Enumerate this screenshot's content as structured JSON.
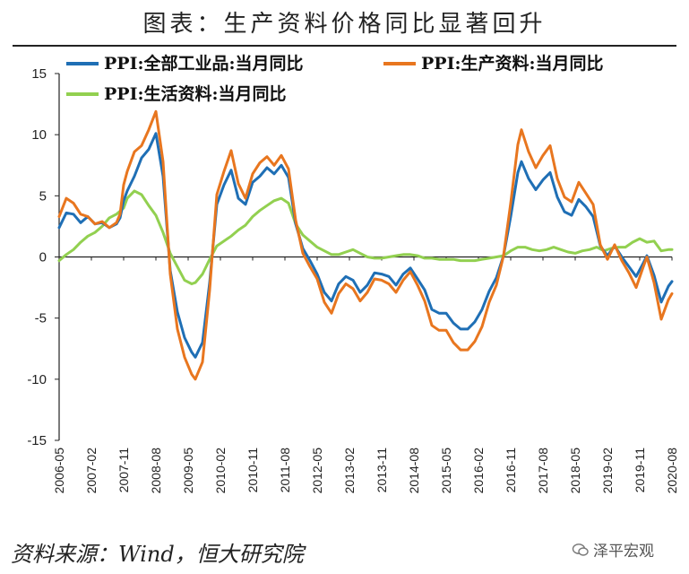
{
  "title": "图表：生产资料价格同比显著回升",
  "source": "资料来源：Wind，恒大研究院",
  "watermark": "泽平宏观",
  "chart_data": {
    "type": "line",
    "title": "图表：生产资料价格同比显著回升",
    "xlabel": "",
    "ylabel": "",
    "ylim": [
      -15,
      15
    ],
    "yticks": [
      15,
      10,
      5,
      0,
      -5,
      -10,
      -15
    ],
    "xlim": [
      "2006-05",
      "2020-08"
    ],
    "xticks": [
      "2006-05",
      "2007-02",
      "2007-11",
      "2008-08",
      "2009-05",
      "2010-02",
      "2010-11",
      "2011-08",
      "2012-05",
      "2013-02",
      "2013-11",
      "2014-08",
      "2015-05",
      "2016-02",
      "2016-11",
      "2017-08",
      "2018-05",
      "2019-02",
      "2019-11",
      "2020-08"
    ],
    "grid": false,
    "legend_position": "top-left",
    "series": [
      {
        "name": "PPI:全部工业品:当月同比",
        "color": "#1f6fb5",
        "points": [
          [
            "2006-05",
            2.4
          ],
          [
            "2006-07",
            3.6
          ],
          [
            "2006-09",
            3.5
          ],
          [
            "2006-11",
            2.8
          ],
          [
            "2007-01",
            3.3
          ],
          [
            "2007-03",
            2.7
          ],
          [
            "2007-05",
            2.8
          ],
          [
            "2007-07",
            2.4
          ],
          [
            "2007-09",
            2.7
          ],
          [
            "2007-10",
            3.2
          ],
          [
            "2007-11",
            4.6
          ],
          [
            "2007-12",
            5.4
          ],
          [
            "2008-02",
            6.6
          ],
          [
            "2008-04",
            8.1
          ],
          [
            "2008-06",
            8.8
          ],
          [
            "2008-08",
            10.1
          ],
          [
            "2008-10",
            6.6
          ],
          [
            "2008-12",
            -1.1
          ],
          [
            "2009-02",
            -4.5
          ],
          [
            "2009-04",
            -6.6
          ],
          [
            "2009-06",
            -7.8
          ],
          [
            "2009-07",
            -8.2
          ],
          [
            "2009-09",
            -7.0
          ],
          [
            "2009-11",
            -2.1
          ],
          [
            "2010-01",
            4.3
          ],
          [
            "2010-03",
            5.9
          ],
          [
            "2010-05",
            7.1
          ],
          [
            "2010-07",
            4.8
          ],
          [
            "2010-09",
            4.3
          ],
          [
            "2010-11",
            6.1
          ],
          [
            "2011-01",
            6.6
          ],
          [
            "2011-03",
            7.3
          ],
          [
            "2011-05",
            6.8
          ],
          [
            "2011-07",
            7.5
          ],
          [
            "2011-09",
            6.5
          ],
          [
            "2011-11",
            2.7
          ],
          [
            "2012-01",
            0.7
          ],
          [
            "2012-03",
            -0.3
          ],
          [
            "2012-05",
            -1.4
          ],
          [
            "2012-07",
            -2.9
          ],
          [
            "2012-09",
            -3.6
          ],
          [
            "2012-11",
            -2.2
          ],
          [
            "2013-01",
            -1.6
          ],
          [
            "2013-03",
            -1.9
          ],
          [
            "2013-05",
            -2.9
          ],
          [
            "2013-07",
            -2.3
          ],
          [
            "2013-09",
            -1.3
          ],
          [
            "2013-11",
            -1.4
          ],
          [
            "2014-01",
            -1.6
          ],
          [
            "2014-03",
            -2.3
          ],
          [
            "2014-05",
            -1.4
          ],
          [
            "2014-07",
            -0.9
          ],
          [
            "2014-09",
            -1.8
          ],
          [
            "2014-11",
            -2.7
          ],
          [
            "2015-01",
            -4.3
          ],
          [
            "2015-03",
            -4.6
          ],
          [
            "2015-05",
            -4.6
          ],
          [
            "2015-07",
            -5.4
          ],
          [
            "2015-09",
            -5.9
          ],
          [
            "2015-11",
            -5.9
          ],
          [
            "2016-01",
            -5.3
          ],
          [
            "2016-03",
            -4.3
          ],
          [
            "2016-05",
            -2.8
          ],
          [
            "2016-07",
            -1.7
          ],
          [
            "2016-09",
            0.1
          ],
          [
            "2016-11",
            3.3
          ],
          [
            "2017-01",
            6.9
          ],
          [
            "2017-02",
            7.8
          ],
          [
            "2017-04",
            6.4
          ],
          [
            "2017-06",
            5.5
          ],
          [
            "2017-08",
            6.3
          ],
          [
            "2017-10",
            6.9
          ],
          [
            "2017-12",
            4.9
          ],
          [
            "2018-02",
            3.7
          ],
          [
            "2018-04",
            3.4
          ],
          [
            "2018-06",
            4.7
          ],
          [
            "2018-08",
            4.1
          ],
          [
            "2018-10",
            3.3
          ],
          [
            "2018-12",
            0.9
          ],
          [
            "2019-02",
            0.1
          ],
          [
            "2019-04",
            0.9
          ],
          [
            "2019-06",
            0.0
          ],
          [
            "2019-08",
            -0.8
          ],
          [
            "2019-10",
            -1.6
          ],
          [
            "2019-12",
            -0.5
          ],
          [
            "2020-01",
            0.1
          ],
          [
            "2020-03",
            -1.5
          ],
          [
            "2020-05",
            -3.7
          ],
          [
            "2020-07",
            -2.4
          ],
          [
            "2020-08",
            -2.0
          ]
        ]
      },
      {
        "name": "PPI:生产资料:当月同比",
        "color": "#e8761f",
        "points": [
          [
            "2006-05",
            3.3
          ],
          [
            "2006-07",
            4.8
          ],
          [
            "2006-09",
            4.4
          ],
          [
            "2006-11",
            3.5
          ],
          [
            "2007-01",
            3.3
          ],
          [
            "2007-03",
            2.7
          ],
          [
            "2007-05",
            2.9
          ],
          [
            "2007-07",
            2.4
          ],
          [
            "2007-09",
            2.8
          ],
          [
            "2007-10",
            3.5
          ],
          [
            "2007-11",
            5.9
          ],
          [
            "2007-12",
            7.0
          ],
          [
            "2008-02",
            8.6
          ],
          [
            "2008-04",
            9.1
          ],
          [
            "2008-06",
            10.4
          ],
          [
            "2008-08",
            11.9
          ],
          [
            "2008-10",
            7.8
          ],
          [
            "2008-12",
            -1.4
          ],
          [
            "2009-02",
            -5.9
          ],
          [
            "2009-04",
            -8.2
          ],
          [
            "2009-06",
            -9.6
          ],
          [
            "2009-07",
            -10.0
          ],
          [
            "2009-09",
            -8.6
          ],
          [
            "2009-11",
            -2.7
          ],
          [
            "2010-01",
            5.1
          ],
          [
            "2010-03",
            7.0
          ],
          [
            "2010-05",
            8.7
          ],
          [
            "2010-07",
            6.0
          ],
          [
            "2010-09",
            4.8
          ],
          [
            "2010-11",
            6.8
          ],
          [
            "2011-01",
            7.7
          ],
          [
            "2011-03",
            8.2
          ],
          [
            "2011-05",
            7.5
          ],
          [
            "2011-07",
            8.3
          ],
          [
            "2011-09",
            7.2
          ],
          [
            "2011-11",
            3.0
          ],
          [
            "2012-01",
            0.3
          ],
          [
            "2012-03",
            -0.8
          ],
          [
            "2012-05",
            -1.8
          ],
          [
            "2012-07",
            -3.7
          ],
          [
            "2012-09",
            -4.6
          ],
          [
            "2012-11",
            -3.0
          ],
          [
            "2013-01",
            -2.2
          ],
          [
            "2013-03",
            -2.6
          ],
          [
            "2013-05",
            -3.6
          ],
          [
            "2013-07",
            -2.9
          ],
          [
            "2013-09",
            -1.8
          ],
          [
            "2013-11",
            -1.9
          ],
          [
            "2014-01",
            -2.2
          ],
          [
            "2014-03",
            -2.9
          ],
          [
            "2014-05",
            -1.9
          ],
          [
            "2014-07",
            -1.2
          ],
          [
            "2014-09",
            -2.3
          ],
          [
            "2014-11",
            -3.6
          ],
          [
            "2015-01",
            -5.6
          ],
          [
            "2015-03",
            -6.0
          ],
          [
            "2015-05",
            -6.0
          ],
          [
            "2015-07",
            -7.0
          ],
          [
            "2015-09",
            -7.6
          ],
          [
            "2015-11",
            -7.6
          ],
          [
            "2016-01",
            -6.9
          ],
          [
            "2016-03",
            -5.7
          ],
          [
            "2016-05",
            -3.7
          ],
          [
            "2016-07",
            -2.3
          ],
          [
            "2016-09",
            0.1
          ],
          [
            "2016-11",
            4.4
          ],
          [
            "2017-01",
            9.2
          ],
          [
            "2017-02",
            10.4
          ],
          [
            "2017-04",
            8.6
          ],
          [
            "2017-06",
            7.3
          ],
          [
            "2017-08",
            8.3
          ],
          [
            "2017-10",
            9.1
          ],
          [
            "2017-12",
            6.4
          ],
          [
            "2018-02",
            4.9
          ],
          [
            "2018-04",
            4.5
          ],
          [
            "2018-06",
            6.1
          ],
          [
            "2018-08",
            5.2
          ],
          [
            "2018-10",
            4.3
          ],
          [
            "2018-12",
            1.0
          ],
          [
            "2019-02",
            -0.2
          ],
          [
            "2019-04",
            1.0
          ],
          [
            "2019-06",
            -0.3
          ],
          [
            "2019-08",
            -1.3
          ],
          [
            "2019-10",
            -2.5
          ],
          [
            "2019-12",
            -0.8
          ],
          [
            "2020-01",
            0.0
          ],
          [
            "2020-03",
            -2.1
          ],
          [
            "2020-05",
            -5.1
          ],
          [
            "2020-07",
            -3.5
          ],
          [
            "2020-08",
            -3.0
          ]
        ]
      },
      {
        "name": "PPI:生活资料:当月同比",
        "color": "#92d050",
        "points": [
          [
            "2006-05",
            -0.3
          ],
          [
            "2006-07",
            0.2
          ],
          [
            "2006-09",
            0.6
          ],
          [
            "2006-11",
            1.2
          ],
          [
            "2007-01",
            1.7
          ],
          [
            "2007-03",
            2.0
          ],
          [
            "2007-05",
            2.5
          ],
          [
            "2007-07",
            3.2
          ],
          [
            "2007-09",
            3.5
          ],
          [
            "2007-11",
            4.0
          ],
          [
            "2007-12",
            4.8
          ],
          [
            "2008-02",
            5.4
          ],
          [
            "2008-04",
            5.1
          ],
          [
            "2008-06",
            4.2
          ],
          [
            "2008-08",
            3.4
          ],
          [
            "2008-10",
            2.0
          ],
          [
            "2008-12",
            0.3
          ],
          [
            "2009-02",
            -0.8
          ],
          [
            "2009-04",
            -1.9
          ],
          [
            "2009-06",
            -2.2
          ],
          [
            "2009-07",
            -2.1
          ],
          [
            "2009-09",
            -1.4
          ],
          [
            "2009-11",
            -0.2
          ],
          [
            "2010-01",
            0.9
          ],
          [
            "2010-03",
            1.3
          ],
          [
            "2010-05",
            1.7
          ],
          [
            "2010-07",
            2.2
          ],
          [
            "2010-09",
            2.6
          ],
          [
            "2010-11",
            3.3
          ],
          [
            "2011-01",
            3.8
          ],
          [
            "2011-03",
            4.2
          ],
          [
            "2011-05",
            4.6
          ],
          [
            "2011-07",
            4.8
          ],
          [
            "2011-09",
            4.4
          ],
          [
            "2011-11",
            2.7
          ],
          [
            "2012-01",
            1.8
          ],
          [
            "2012-03",
            1.3
          ],
          [
            "2012-05",
            0.8
          ],
          [
            "2012-07",
            0.5
          ],
          [
            "2012-09",
            0.2
          ],
          [
            "2012-11",
            0.2
          ],
          [
            "2013-01",
            0.4
          ],
          [
            "2013-03",
            0.6
          ],
          [
            "2013-05",
            0.3
          ],
          [
            "2013-07",
            0.0
          ],
          [
            "2013-09",
            -0.1
          ],
          [
            "2013-11",
            -0.1
          ],
          [
            "2014-01",
            0.0
          ],
          [
            "2014-03",
            0.1
          ],
          [
            "2014-05",
            0.2
          ],
          [
            "2014-07",
            0.2
          ],
          [
            "2014-09",
            0.1
          ],
          [
            "2014-11",
            -0.1
          ],
          [
            "2015-01",
            -0.1
          ],
          [
            "2015-03",
            -0.2
          ],
          [
            "2015-05",
            -0.2
          ],
          [
            "2015-07",
            -0.2
          ],
          [
            "2015-09",
            -0.3
          ],
          [
            "2015-11",
            -0.3
          ],
          [
            "2016-01",
            -0.3
          ],
          [
            "2016-03",
            -0.2
          ],
          [
            "2016-05",
            -0.1
          ],
          [
            "2016-07",
            0.0
          ],
          [
            "2016-09",
            0.1
          ],
          [
            "2016-11",
            0.5
          ],
          [
            "2017-01",
            0.8
          ],
          [
            "2017-03",
            0.8
          ],
          [
            "2017-05",
            0.6
          ],
          [
            "2017-07",
            0.5
          ],
          [
            "2017-09",
            0.6
          ],
          [
            "2017-11",
            0.8
          ],
          [
            "2018-01",
            0.6
          ],
          [
            "2018-03",
            0.4
          ],
          [
            "2018-05",
            0.3
          ],
          [
            "2018-07",
            0.5
          ],
          [
            "2018-09",
            0.6
          ],
          [
            "2018-11",
            0.8
          ],
          [
            "2019-01",
            0.5
          ],
          [
            "2019-03",
            0.7
          ],
          [
            "2019-05",
            0.8
          ],
          [
            "2019-07",
            0.8
          ],
          [
            "2019-09",
            1.2
          ],
          [
            "2019-11",
            1.5
          ],
          [
            "2020-01",
            1.2
          ],
          [
            "2020-03",
            1.3
          ],
          [
            "2020-05",
            0.5
          ],
          [
            "2020-07",
            0.6
          ],
          [
            "2020-08",
            0.6
          ]
        ]
      }
    ]
  }
}
